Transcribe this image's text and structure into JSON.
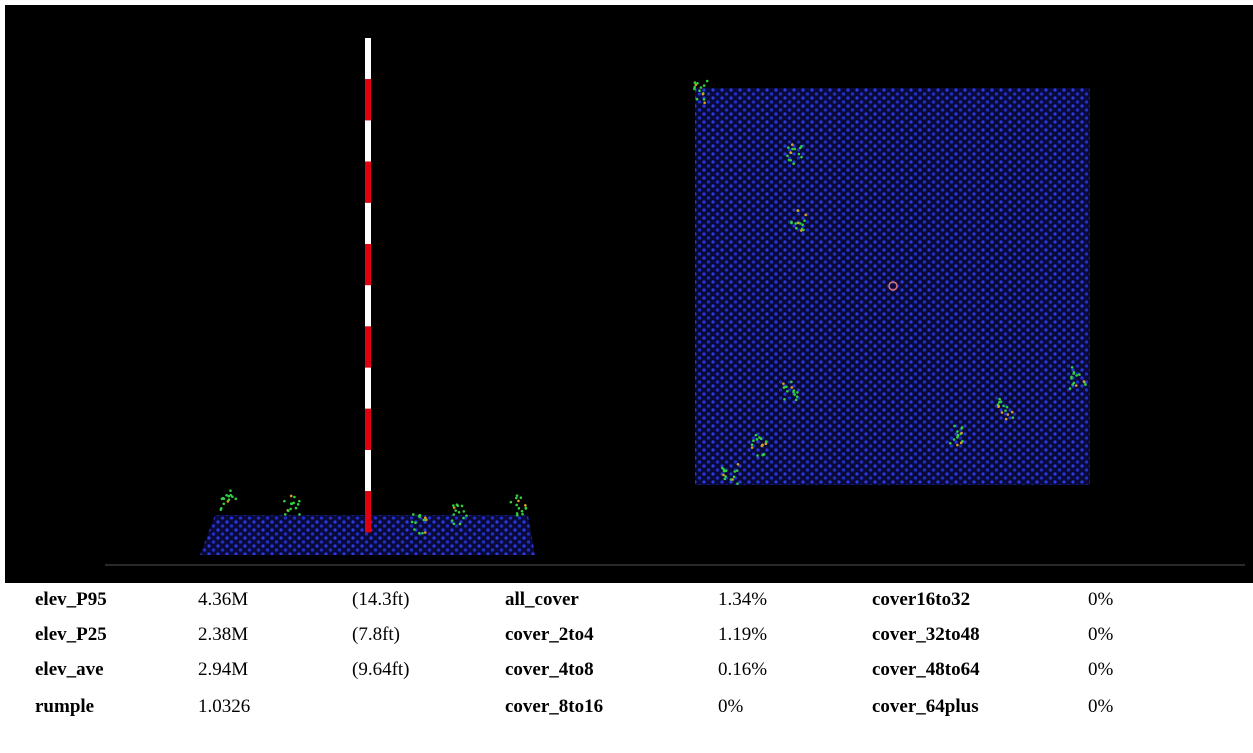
{
  "table": {
    "groups": [
      {
        "rows": [
          [
            "elev_P95",
            "4.36M",
            "(14.3ft)"
          ],
          [
            "elev_P25",
            "2.38M",
            "(7.8ft)"
          ],
          [
            "elev_ave",
            "2.94M",
            "(9.64ft)"
          ],
          [
            "rumple",
            "1.0326"
          ]
        ]
      },
      {
        "rows": [
          [
            "all_cover",
            "1.34%"
          ],
          [
            "cover_2to4",
            "1.19%"
          ],
          [
            "cover_4to8",
            "0.16%"
          ],
          [
            "cover_8to16",
            "0%"
          ]
        ]
      },
      {
        "rows": [
          [
            "cover16to32",
            "0%"
          ],
          [
            "cover_32to48",
            "0%"
          ],
          [
            "cover_48to64",
            "0%"
          ],
          [
            "cover_64plus",
            "0%"
          ]
        ]
      }
    ]
  }
}
